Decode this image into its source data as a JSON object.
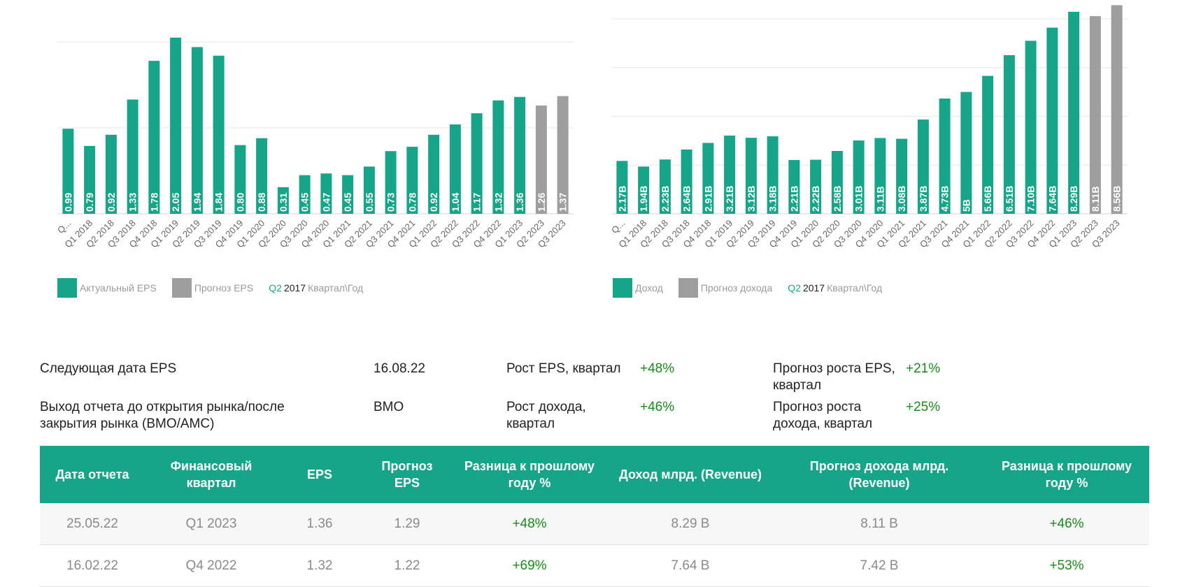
{
  "eps_legend": {
    "actual": "Актуальный EPS",
    "forecast": "Прогноз EPS",
    "note_q": "Q2",
    "note_year": "2017",
    "note_label": "Квартал\\Год"
  },
  "rev_legend": {
    "actual": "Доход",
    "forecast": "Прогноз дохода",
    "note_q": "Q2",
    "note_year": "2017",
    "note_label": "Квартал\\Год"
  },
  "colors": {
    "actual": "#17a589",
    "forecast": "#9e9e9e",
    "positive": "#1a8a1a"
  },
  "chart_data": [
    {
      "type": "bar",
      "title": "",
      "categories": [
        "Q...",
        "Q1 2018",
        "Q2 2018",
        "Q3 2018",
        "Q4 2018",
        "Q1 2019",
        "Q2 2019",
        "Q3 2019",
        "Q4 2019",
        "Q1 2020",
        "Q2 2020",
        "Q3 2020",
        "Q4 2020",
        "Q1 2021",
        "Q2 2021",
        "Q3 2021",
        "Q4 2021",
        "Q1 2022",
        "Q2 2022",
        "Q3 2022",
        "Q4 2022",
        "Q1 2023",
        "Q2 2023",
        "Q3 2023"
      ],
      "values": [
        0.99,
        0.79,
        0.92,
        1.33,
        1.78,
        2.05,
        1.94,
        1.84,
        0.8,
        0.88,
        0.31,
        0.45,
        0.47,
        0.45,
        0.55,
        0.73,
        0.78,
        0.92,
        1.04,
        1.17,
        1.32,
        1.36,
        1.26,
        1.37
      ],
      "labels": [
        "0.99",
        "0.79",
        "0.92",
        "1.33",
        "1.78",
        "2.05",
        "1.94",
        "1.84",
        "0.80",
        "0.88",
        "0.31",
        "0.45",
        "0.47",
        "0.45",
        "0.55",
        "0.73",
        "0.78",
        "0.92",
        "1.04",
        "1.17",
        "1.32",
        "1.36",
        "1.26",
        "1.37"
      ],
      "kinds": [
        "actual",
        "actual",
        "actual",
        "actual",
        "actual",
        "actual",
        "actual",
        "actual",
        "actual",
        "actual",
        "actual",
        "actual",
        "actual",
        "actual",
        "actual",
        "actual",
        "actual",
        "actual",
        "actual",
        "actual",
        "actual",
        "actual",
        "forecast",
        "forecast"
      ],
      "ylim": [
        0,
        2.0
      ],
      "gridlines": [
        1.0,
        2.0
      ],
      "legend_position": "bottom-left"
    },
    {
      "type": "bar",
      "title": "",
      "categories": [
        "Q...",
        "Q1 2018",
        "Q2 2018",
        "Q3 2018",
        "Q4 2018",
        "Q1 2019",
        "Q2 2019",
        "Q3 2019",
        "Q4 2019",
        "Q1 2020",
        "Q2 2020",
        "Q3 2020",
        "Q4 2020",
        "Q1 2021",
        "Q2 2021",
        "Q3 2021",
        "Q4 2021",
        "Q1 2022",
        "Q2 2022",
        "Q3 2022",
        "Q4 2022",
        "Q1 2023",
        "Q2 2023",
        "Q3 2023"
      ],
      "values": [
        2.17,
        1.94,
        2.23,
        2.64,
        2.91,
        3.21,
        3.12,
        3.18,
        2.21,
        2.22,
        2.58,
        3.01,
        3.11,
        3.08,
        3.87,
        4.73,
        5.0,
        5.66,
        6.51,
        7.1,
        7.64,
        8.29,
        8.11,
        8.56
      ],
      "labels": [
        "2.17B",
        "1.94B",
        "2.23B",
        "2.64B",
        "2.91B",
        "3.21B",
        "3.12B",
        "3.18B",
        "2.21B",
        "2.22B",
        "2.58B",
        "3.01B",
        "3.11B",
        "3.08B",
        "3.87B",
        "4.73B",
        "5B",
        "5.66B",
        "6.51B",
        "7.10B",
        "7.64B",
        "8.29B",
        "8.11B",
        "8.56B"
      ],
      "kinds": [
        "actual",
        "actual",
        "actual",
        "actual",
        "actual",
        "actual",
        "actual",
        "actual",
        "actual",
        "actual",
        "actual",
        "actual",
        "actual",
        "actual",
        "actual",
        "actual",
        "actual",
        "actual",
        "actual",
        "actual",
        "actual",
        "actual",
        "forecast",
        "forecast"
      ],
      "ylim": [
        0,
        8.2
      ],
      "gridlines": [
        2.0,
        4.0,
        6.0,
        8.0
      ],
      "legend_position": "bottom-left"
    }
  ],
  "info": {
    "next_eps_label": "Следующая дата EPS",
    "next_eps_value": "16.08.22",
    "report_time_label": "Выход отчета до открытия рынка/после закрытия рынка (BMO/AMC)",
    "report_time_value": "BMO",
    "eps_growth_label": "Рост EPS, квартал",
    "eps_growth_value": "+48%",
    "rev_growth_label": "Рост дохода, квартал",
    "rev_growth_value": "+46%",
    "eps_forecast_growth_label": "Прогноз роста EPS, квартал",
    "eps_forecast_growth_value": "+21%",
    "rev_forecast_growth_label": "Прогноз роста дохода, квартал",
    "rev_forecast_growth_value": "+25%"
  },
  "table": {
    "headers": [
      "Дата отчета",
      "Финансовый квартал",
      "EPS",
      "Прогноз EPS",
      "Разница к прошлому году %",
      "Доход млрд. (Revenue)",
      "Прогноз дохода млрд. (Revenue)",
      "Разница к прошлому году %"
    ],
    "rows": [
      [
        "25.05.22",
        "Q1 2023",
        "1.36",
        "1.29",
        "+48%",
        "8.29 B",
        "8.11 B",
        "+46%"
      ],
      [
        "16.02.22",
        "Q4 2022",
        "1.32",
        "1.22",
        "+69%",
        "7.64 B",
        "7.42 B",
        "+53%"
      ]
    ]
  }
}
